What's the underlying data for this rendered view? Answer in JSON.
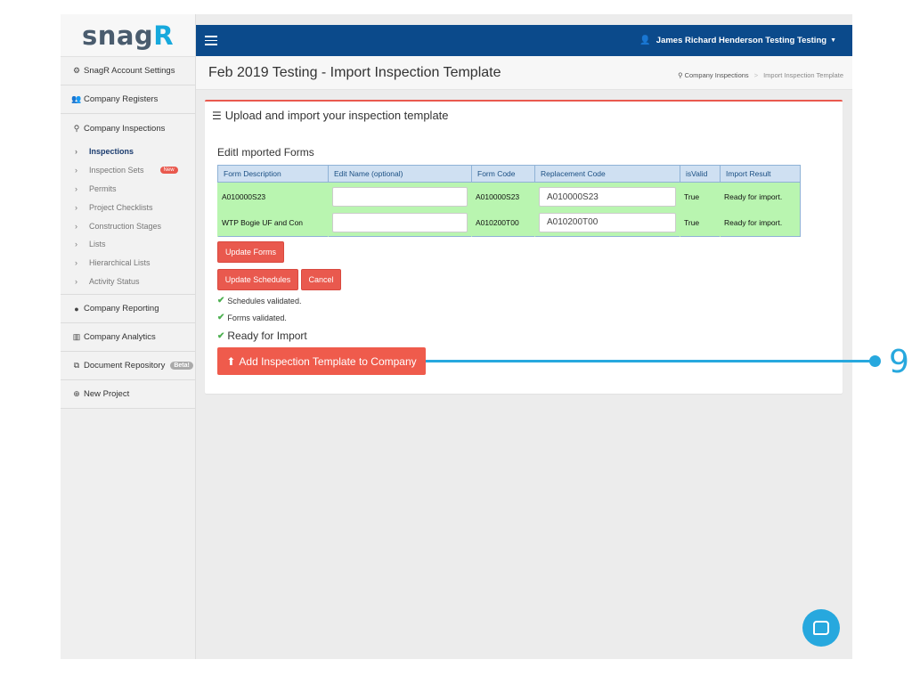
{
  "app": {
    "logo_main": "snag",
    "logo_r": "R"
  },
  "sidebar": {
    "items": [
      {
        "label": "SnagR Account Settings",
        "icon": "cogs-icon",
        "glyph": "⚙"
      },
      {
        "label": "Company Registers",
        "icon": "users-icon",
        "glyph": "👥"
      },
      {
        "label": "Company Inspections",
        "icon": "search-icon",
        "glyph": "🔍"
      }
    ],
    "sub_items": [
      {
        "label": "Inspections",
        "active": true
      },
      {
        "label": "Inspection Sets",
        "badge": "New"
      },
      {
        "label": "Permits"
      },
      {
        "label": "Project Checklists"
      },
      {
        "label": "Construction Stages"
      },
      {
        "label": "Lists"
      },
      {
        "label": "Hierarchical Lists"
      },
      {
        "label": "Activity Status"
      }
    ],
    "items_after": [
      {
        "label": "Company Reporting",
        "icon": "globe-icon",
        "glyph": "●"
      },
      {
        "label": "Company Analytics",
        "icon": "bar-chart-icon",
        "glyph": "▥"
      },
      {
        "label": "Document Repository",
        "icon": "copy-icon",
        "glyph": "⧉",
        "badge": "Beta!"
      },
      {
        "label": "New Project",
        "icon": "plus-circle-icon",
        "glyph": "⊕"
      }
    ]
  },
  "topbar": {
    "user_name": "James Richard Henderson Testing Testing"
  },
  "header": {
    "title": "Feb 2019 Testing - Import Inspection Template",
    "breadcrumb_1": "Company Inspections",
    "breadcrumb_sep": ">",
    "breadcrumb_2": "Import Inspection Template"
  },
  "panel": {
    "title": "Upload and import your inspection template",
    "section_title": "EditI mported Forms",
    "table": {
      "headers": [
        "Form Description",
        "Edit Name (optional)",
        "Form Code",
        "Replacement Code",
        "isValid",
        "Import Result"
      ],
      "rows": [
        {
          "description": "A010000S23",
          "edit_name": "",
          "code": "A010000S23",
          "replacement": "A010000S23",
          "valid": "True",
          "result": "Ready for import."
        },
        {
          "description": "WTP Bogie UF and Con",
          "edit_name": "",
          "code": "A010200T00",
          "replacement": "A010200T00",
          "valid": "True",
          "result": "Ready for import."
        }
      ]
    },
    "buttons": {
      "update_forms": "Update Forms",
      "update_schedules": "Update Schedules",
      "cancel": "Cancel",
      "add_template": "Add Inspection Template to Company"
    },
    "status": {
      "schedules": "Schedules validated.",
      "forms": "Forms validated.",
      "ready": "Ready for Import"
    }
  },
  "callout": {
    "number": "9"
  },
  "colors": {
    "accent": "#e9594e",
    "navbar": "#0b4a8b",
    "callout": "#27a8de",
    "valid_row": "#b9f5b0"
  }
}
